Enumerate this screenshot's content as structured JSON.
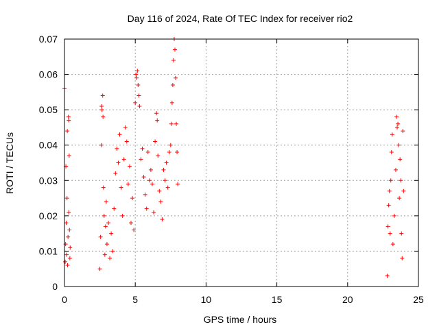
{
  "chart_data": {
    "type": "scatter",
    "title": "Day 116 of 2024, Rate Of TEC Index for receiver rio2",
    "xlabel": "GPS time / hours",
    "ylabel": "ROTI / TECUs",
    "xlim": [
      0,
      25
    ],
    "ylim": [
      0,
      0.07
    ],
    "xticks": [
      "0",
      "5",
      "10",
      "15",
      "20",
      "25"
    ],
    "yticks": [
      "0",
      "0.01",
      "0.02",
      "0.03",
      "0.04",
      "0.05",
      "0.06",
      "0.07"
    ],
    "grid": true,
    "marker": "+",
    "color": "#ff0000",
    "series": [
      {
        "values": [
          [
            0.0,
            0.056
          ],
          [
            0.05,
            0.007
          ],
          [
            0.08,
            0.012
          ],
          [
            0.1,
            0.034
          ],
          [
            0.12,
            0.018
          ],
          [
            0.15,
            0.009
          ],
          [
            0.18,
            0.025
          ],
          [
            0.2,
            0.044
          ],
          [
            0.22,
            0.006
          ],
          [
            0.25,
            0.014
          ],
          [
            0.28,
            0.048
          ],
          [
            0.3,
            0.047
          ],
          [
            0.3,
            0.021
          ],
          [
            0.33,
            0.037
          ],
          [
            0.35,
            0.016
          ],
          [
            0.38,
            0.008
          ],
          [
            0.4,
            0.011
          ],
          [
            2.5,
            0.005
          ],
          [
            2.55,
            0.014
          ],
          [
            2.6,
            0.04
          ],
          [
            2.62,
            0.051
          ],
          [
            2.65,
            0.05
          ],
          [
            2.7,
            0.054
          ],
          [
            2.72,
            0.048
          ],
          [
            2.75,
            0.028
          ],
          [
            2.8,
            0.02
          ],
          [
            2.85,
            0.009
          ],
          [
            2.9,
            0.017
          ],
          [
            2.95,
            0.024
          ],
          [
            3.0,
            0.012
          ],
          [
            3.1,
            0.018
          ],
          [
            3.2,
            0.008
          ],
          [
            3.3,
            0.015
          ],
          [
            3.4,
            0.01
          ],
          [
            3.5,
            0.022
          ],
          [
            3.6,
            0.032
          ],
          [
            3.7,
            0.039
          ],
          [
            3.8,
            0.035
          ],
          [
            3.9,
            0.043
          ],
          [
            4.0,
            0.028
          ],
          [
            4.1,
            0.02
          ],
          [
            4.2,
            0.036
          ],
          [
            4.3,
            0.045
          ],
          [
            4.4,
            0.041
          ],
          [
            4.5,
            0.029
          ],
          [
            4.6,
            0.034
          ],
          [
            4.7,
            0.018
          ],
          [
            4.8,
            0.025
          ],
          [
            4.9,
            0.016
          ],
          [
            5.0,
            0.052
          ],
          [
            5.05,
            0.06
          ],
          [
            5.1,
            0.059
          ],
          [
            5.15,
            0.061
          ],
          [
            5.2,
            0.057
          ],
          [
            5.25,
            0.054
          ],
          [
            5.3,
            0.051
          ],
          [
            5.4,
            0.036
          ],
          [
            5.5,
            0.039
          ],
          [
            5.6,
            0.031
          ],
          [
            5.7,
            0.026
          ],
          [
            5.8,
            0.022
          ],
          [
            5.9,
            0.038
          ],
          [
            6.0,
            0.03
          ],
          [
            6.1,
            0.033
          ],
          [
            6.2,
            0.029
          ],
          [
            6.3,
            0.021
          ],
          [
            6.4,
            0.041
          ],
          [
            6.5,
            0.049
          ],
          [
            6.55,
            0.047
          ],
          [
            6.6,
            0.037
          ],
          [
            6.7,
            0.027
          ],
          [
            6.8,
            0.024
          ],
          [
            6.9,
            0.019
          ],
          [
            7.0,
            0.033
          ],
          [
            7.1,
            0.03
          ],
          [
            7.2,
            0.035
          ],
          [
            7.3,
            0.028
          ],
          [
            7.4,
            0.038
          ],
          [
            7.5,
            0.04
          ],
          [
            7.55,
            0.046
          ],
          [
            7.6,
            0.052
          ],
          [
            7.65,
            0.057
          ],
          [
            7.7,
            0.064
          ],
          [
            7.75,
            0.07
          ],
          [
            7.8,
            0.067
          ],
          [
            7.85,
            0.059
          ],
          [
            7.9,
            0.046
          ],
          [
            7.95,
            0.038
          ],
          [
            8.0,
            0.029
          ],
          [
            22.8,
            0.003
          ],
          [
            22.85,
            0.017
          ],
          [
            22.9,
            0.023
          ],
          [
            22.95,
            0.027
          ],
          [
            23.0,
            0.015
          ],
          [
            23.05,
            0.03
          ],
          [
            23.1,
            0.038
          ],
          [
            23.15,
            0.043
          ],
          [
            23.2,
            0.012
          ],
          [
            23.3,
            0.02
          ],
          [
            23.4,
            0.033
          ],
          [
            23.45,
            0.048
          ],
          [
            23.5,
            0.045
          ],
          [
            23.55,
            0.046
          ],
          [
            23.6,
            0.04
          ],
          [
            23.65,
            0.025
          ],
          [
            23.7,
            0.036
          ],
          [
            23.75,
            0.03
          ],
          [
            23.8,
            0.015
          ],
          [
            23.85,
            0.008
          ],
          [
            23.9,
            0.044
          ],
          [
            23.95,
            0.027
          ]
        ]
      }
    ]
  }
}
